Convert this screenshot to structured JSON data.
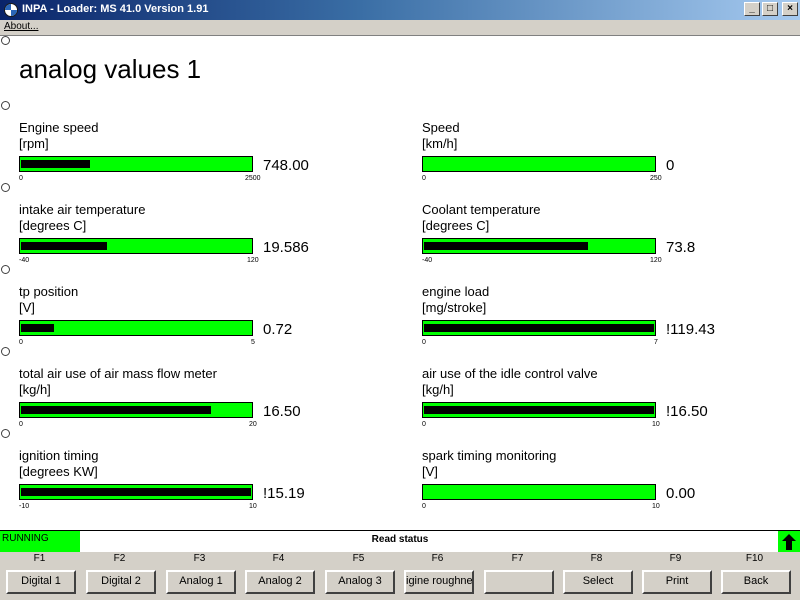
{
  "window": {
    "title": "INPA - Loader:  MS 41.0 Version 1.91",
    "minimize": "_",
    "maximize": "□",
    "close": "×"
  },
  "menu": {
    "about": "About..."
  },
  "page": {
    "title": "analog values 1"
  },
  "gauges": [
    {
      "label": "Engine speed",
      "unit": "[rpm]",
      "value": "748.00",
      "min": "0",
      "max": "2500",
      "fill_fraction": 0.299
    },
    {
      "label": "Speed",
      "unit": "[km/h]",
      "value": "0",
      "min": "0",
      "max": "250",
      "fill_fraction": 0.0
    },
    {
      "label": "intake air temperature",
      "unit": "[degrees C]",
      "value": "19.586",
      "min": "-40",
      "max": "120",
      "fill_fraction": 0.372
    },
    {
      "label": "Coolant temperature",
      "unit": "[degrees C]",
      "value": "73.8",
      "min": "-40",
      "max": "120",
      "fill_fraction": 0.711
    },
    {
      "label": "tp position",
      "unit": "[V]",
      "value": "0.72",
      "min": "0",
      "max": "5",
      "fill_fraction": 0.144
    },
    {
      "label": "engine load",
      "unit": "[mg/stroke]",
      "value": "!119.43",
      "min": "0",
      "max": "7",
      "fill_fraction": 1.0
    },
    {
      "label": "total air use of air mass flow meter",
      "unit": "[kg/h]",
      "value": "16.50",
      "min": "0",
      "max": "20",
      "fill_fraction": 0.825
    },
    {
      "label": "air use of the idle control valve",
      "unit": "[kg/h]",
      "value": "!16.50",
      "min": "0",
      "max": "10",
      "fill_fraction": 1.0
    },
    {
      "label": "ignition timing",
      "unit": "[degrees KW]",
      "value": "!15.19",
      "min": "-10",
      "max": "10",
      "fill_fraction": 1.0
    },
    {
      "label": "spark timing monitoring",
      "unit": "[V]",
      "value": "0.00",
      "min": "0",
      "max": "10",
      "fill_fraction": 0.0
    }
  ],
  "status": {
    "state": "RUNNING",
    "text": "Read status"
  },
  "fkeys": [
    {
      "key": "F1",
      "label": "Digital 1"
    },
    {
      "key": "F2",
      "label": "Digital 2"
    },
    {
      "key": "F3",
      "label": "Analog 1"
    },
    {
      "key": "F4",
      "label": "Analog 2"
    },
    {
      "key": "F5",
      "label": "Analog 3"
    },
    {
      "key": "F6",
      "label": "igine roughne"
    },
    {
      "key": "F7",
      "label": ""
    },
    {
      "key": "F8",
      "label": "Select"
    },
    {
      "key": "F9",
      "label": "Print"
    },
    {
      "key": "F10",
      "label": "Back"
    }
  ],
  "colors": {
    "bar_green": "#00ff00",
    "bar_fill": "#000000",
    "titlebar": "#0a246a",
    "button_face": "#d4d0c8"
  }
}
